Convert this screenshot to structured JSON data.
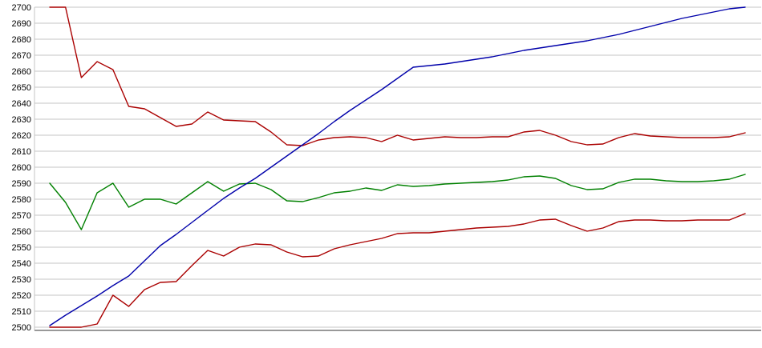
{
  "chart_data": {
    "type": "line",
    "title": "",
    "xlabel": "",
    "ylabel": "",
    "x_labels": [],
    "n_points": 45,
    "ylim": [
      2500,
      2700
    ],
    "y_tick_step": 10,
    "y_tick_labels": [
      "2500",
      "2510",
      "2520",
      "2530",
      "2540",
      "2550",
      "2560",
      "2570",
      "2580",
      "2590",
      "2600",
      "2610",
      "2620",
      "2630",
      "2640",
      "2650",
      "2660",
      "2670",
      "2680",
      "2690",
      "2700"
    ],
    "grid": true,
    "legend_position": "none",
    "colors": {
      "grid": "#c6c6c6",
      "axis": "#999999",
      "background": "#ffffff",
      "upper_red": "#aa0000",
      "blue": "#0000aa",
      "green": "#008000",
      "lower_red": "#aa0000"
    },
    "series": [
      {
        "name": "upper-red-line",
        "color": "#aa0000",
        "values": [
          2700,
          2700,
          2656,
          2666,
          2661,
          2638,
          2636.5,
          2631,
          2625.5,
          2627,
          2634.5,
          2629.5,
          2629,
          2628.5,
          2622,
          2614,
          2613.5,
          2617,
          2618.5,
          2619,
          2618.5,
          2616,
          2620,
          2617,
          2618,
          2619,
          2618.5,
          2618.5,
          2619,
          2619,
          2622,
          2623,
          2620,
          2616,
          2614,
          2614.5,
          2618.5,
          2621,
          2619.5,
          2619,
          2618.5,
          2618.5,
          2618.5,
          2619,
          2621.5
        ]
      },
      {
        "name": "green-line",
        "color": "#008000",
        "values": [
          2590,
          2578,
          2561,
          2584,
          2590,
          2575,
          2580,
          2580,
          2577,
          2584,
          2591,
          2585,
          2589.5,
          2590,
          2586,
          2579,
          2578.5,
          2581,
          2584,
          2585,
          2587,
          2585.5,
          2589,
          2588,
          2588.5,
          2589.5,
          2590,
          2590.5,
          2591,
          2592,
          2594,
          2594.5,
          2593,
          2588.5,
          2586,
          2586.5,
          2590.5,
          2592.5,
          2592.5,
          2591.5,
          2591,
          2591,
          2591.5,
          2592.5,
          2595.5
        ]
      },
      {
        "name": "lower-red-line",
        "color": "#aa0000",
        "values": [
          2500,
          2500,
          2500,
          2502,
          2520,
          2513,
          2523.5,
          2528,
          2528.5,
          2538.5,
          2548,
          2544.5,
          2550,
          2552,
          2551.5,
          2547,
          2544,
          2544.5,
          2549,
          2551.5,
          2553.5,
          2555.5,
          2558.5,
          2559,
          2559,
          2560,
          2561,
          2562,
          2562.5,
          2563,
          2564.5,
          2567,
          2567.5,
          2563.5,
          2560,
          2562,
          2566,
          2567,
          2567,
          2566.5,
          2566.5,
          2567,
          2567,
          2567,
          2571
        ]
      },
      {
        "name": "blue-line",
        "color": "#0000aa",
        "values": [
          2501,
          2507.5,
          2513.5,
          2519.5,
          2526,
          2532,
          2541.5,
          2551,
          2558,
          2565.5,
          2573,
          2580.5,
          2587,
          2593,
          2600,
          2607,
          2614,
          2621,
          2628.5,
          2635.5,
          2642,
          2648.5,
          2655.5,
          2662.5,
          2663.5,
          2664.5,
          2666,
          2667.5,
          2669,
          2671,
          2673,
          2674.5,
          2676,
          2677.5,
          2679,
          2681,
          2683,
          2685.5,
          2688,
          2690.5,
          2693,
          2695,
          2697,
          2699,
          2700
        ]
      }
    ]
  }
}
